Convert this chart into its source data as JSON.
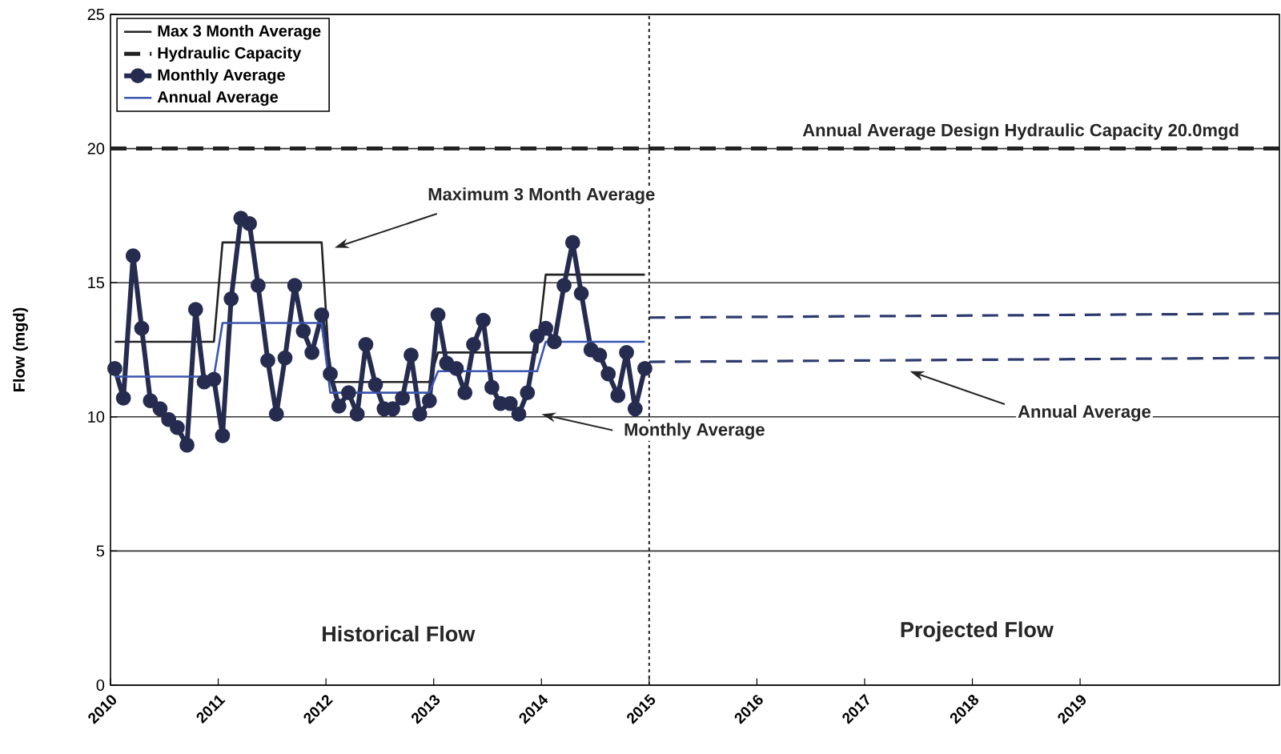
{
  "chart_data": {
    "type": "line",
    "ylabel": "Flow (mgd)",
    "xlim": [
      2010,
      2020.85
    ],
    "ylim": [
      0,
      25
    ],
    "yticks": [
      0,
      5,
      10,
      15,
      20,
      25
    ],
    "xticks": [
      2010,
      2011,
      2012,
      2013,
      2014,
      2015,
      2016,
      2017,
      2018,
      2019
    ],
    "grid": "y",
    "legend": "top left",
    "x": [
      2010.04,
      2010.12,
      2010.21,
      2010.29,
      2010.37,
      2010.46,
      2010.54,
      2010.62,
      2010.71,
      2010.79,
      2010.87,
      2010.96,
      2011.04,
      2011.12,
      2011.21,
      2011.29,
      2011.37,
      2011.46,
      2011.54,
      2011.62,
      2011.71,
      2011.79,
      2011.87,
      2011.96,
      2012.04,
      2012.12,
      2012.21,
      2012.29,
      2012.37,
      2012.46,
      2012.54,
      2012.62,
      2012.71,
      2012.79,
      2012.87,
      2012.96,
      2013.04,
      2013.12,
      2013.21,
      2013.29,
      2013.37,
      2013.46,
      2013.54,
      2013.62,
      2013.71,
      2013.79,
      2013.87,
      2013.96,
      2014.04,
      2014.12,
      2014.21,
      2014.29,
      2014.37,
      2014.46,
      2014.54,
      2014.62,
      2014.71,
      2014.79,
      2014.87,
      2014.96
    ],
    "series": [
      {
        "name": "Max 3 Month Average",
        "color": "#222222",
        "line_style": "solid",
        "marker": "none",
        "x": [
          2010.04,
          2010.96,
          2011.04,
          2011.96,
          2012.04,
          2012.96,
          2013.04,
          2013.96,
          2014.04,
          2014.96
        ],
        "values": [
          12.8,
          12.8,
          16.5,
          16.5,
          11.3,
          11.3,
          12.4,
          12.4,
          15.3,
          15.3
        ]
      },
      {
        "name": "Hydraulic Capacity",
        "color": "#222222",
        "line_style": "dashed",
        "marker": "none",
        "x": [
          2010,
          2020.85
        ],
        "values": [
          20,
          20
        ]
      },
      {
        "name": "Monthly Average",
        "color": "#252c4f",
        "line_style": "solid",
        "marker": "circle",
        "values": [
          11.8,
          10.7,
          16.0,
          13.3,
          10.6,
          10.3,
          9.9,
          9.6,
          8.95,
          14.0,
          11.3,
          11.4,
          9.3,
          14.4,
          17.4,
          17.2,
          14.9,
          12.1,
          10.1,
          12.2,
          14.9,
          13.2,
          12.4,
          13.8,
          11.6,
          10.4,
          10.9,
          10.1,
          12.7,
          11.2,
          10.3,
          10.3,
          10.7,
          12.3,
          10.1,
          10.6,
          13.8,
          12.0,
          11.8,
          10.9,
          12.7,
          13.6,
          11.1,
          10.5,
          10.5,
          10.1,
          10.9,
          13.0,
          13.3,
          12.8,
          14.9,
          16.5,
          14.6,
          12.5,
          12.3,
          11.6,
          10.8,
          12.4,
          10.3,
          11.8
        ]
      },
      {
        "name": "Annual Average",
        "color": "#3b55b0",
        "line_style": "solid",
        "marker": "none",
        "x": [
          2010.04,
          2010.96,
          2011.04,
          2011.96,
          2012.04,
          2012.96,
          2013.04,
          2013.96,
          2014.04,
          2014.96
        ],
        "values": [
          11.5,
          11.5,
          13.5,
          13.5,
          10.9,
          10.9,
          11.7,
          11.7,
          12.8,
          12.8
        ]
      },
      {
        "color": "#2e3a6e",
        "line_style": "dashed",
        "marker": "none",
        "x": [
          2015.0,
          2020.85
        ],
        "values": [
          13.7,
          13.85
        ]
      },
      {
        "color": "#2e3a6e",
        "line_style": "dashed",
        "marker": "none",
        "x": [
          2015.0,
          2020.85
        ],
        "values": [
          12.05,
          12.2
        ]
      }
    ],
    "ref_lines": [
      {
        "axis": "x",
        "value": 2015,
        "line_style": "dotted",
        "color": "#222222"
      }
    ],
    "annotations": [
      {
        "text": "Annual Average Design Hydraulic Capacity 20.0mgd",
        "x": 2018.45,
        "y": 20
      },
      "Maximum 3 Month Average",
      "Monthly Average",
      "Annual Average",
      "Historical Flow",
      "Projected Flow"
    ]
  }
}
